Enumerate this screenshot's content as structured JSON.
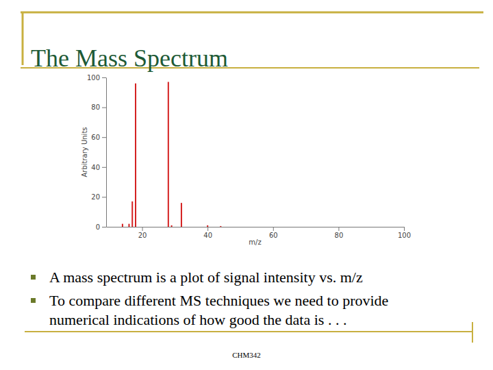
{
  "slide": {
    "title": "The Mass Spectrum",
    "bullets": [
      [
        "A mass spectrum is a plot of signal intensity vs. m/z"
      ],
      [
        "To compare different MS techniques we need to provide",
        "numerical indications of how good the data is . . ."
      ]
    ],
    "footer": "CHM342"
  },
  "chart_data": {
    "type": "bar",
    "x_label": "m/z",
    "y_label": "Arbitrary Units",
    "x": [
      14,
      16,
      17,
      18,
      28,
      29,
      32,
      40,
      44
    ],
    "values": [
      2,
      2,
      17,
      96,
      97,
      1,
      16,
      1,
      0.5
    ],
    "color": "#d42020",
    "xlim": [
      9,
      100
    ],
    "xticks": [
      20,
      40,
      60,
      80,
      100
    ],
    "ylim": [
      0,
      100
    ],
    "yticks": [
      0,
      20,
      40,
      60,
      80,
      100
    ],
    "grid": false
  }
}
